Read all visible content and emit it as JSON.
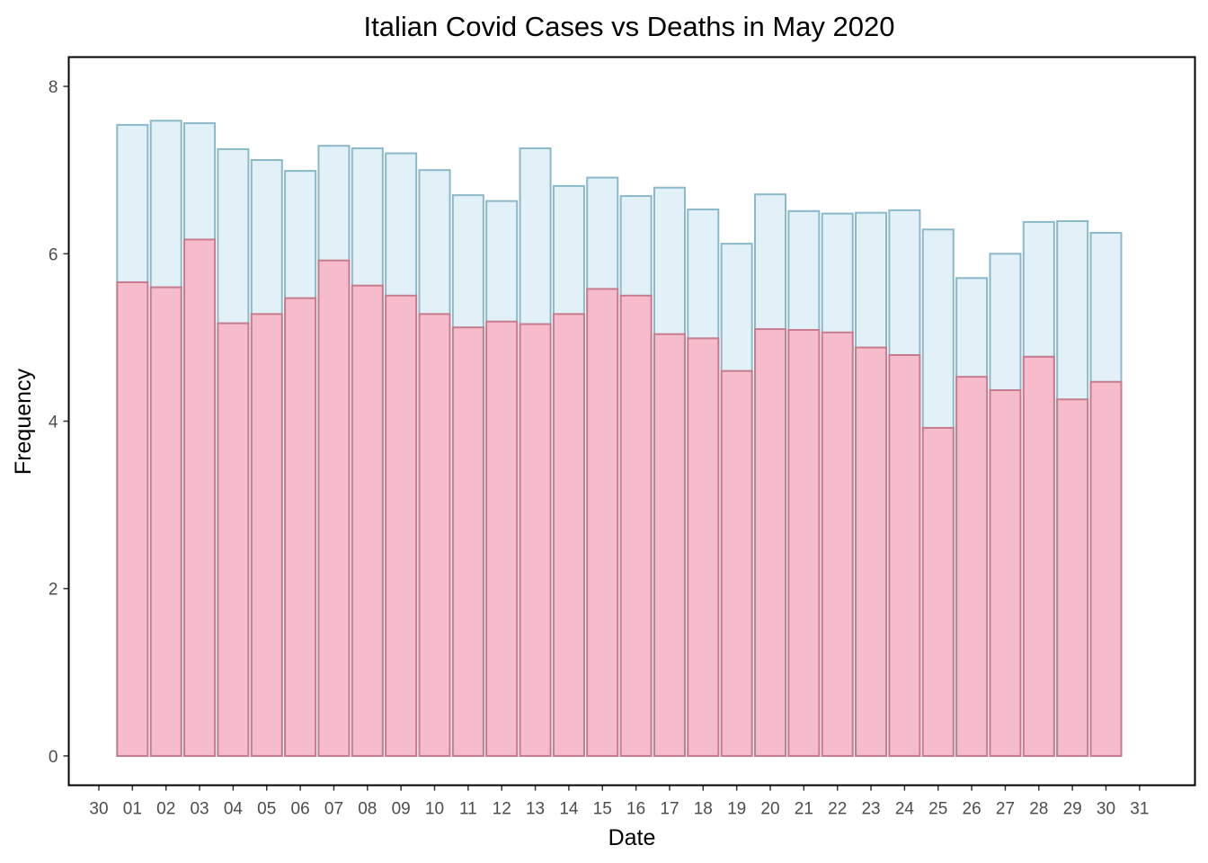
{
  "chart_data": {
    "type": "bar",
    "title": "Italian Covid Cases vs Deaths in May 2020",
    "xlabel": "Date",
    "ylabel": "Frequency",
    "ylim": [
      -0.35,
      8.35
    ],
    "yticks": [
      0,
      2,
      4,
      6,
      8
    ],
    "x_tick_labels": [
      "30",
      "01",
      "02",
      "03",
      "04",
      "05",
      "06",
      "07",
      "08",
      "09",
      "10",
      "11",
      "12",
      "13",
      "14",
      "15",
      "16",
      "17",
      "18",
      "19",
      "20",
      "21",
      "22",
      "23",
      "24",
      "25",
      "26",
      "27",
      "28",
      "29",
      "30",
      "31"
    ],
    "categories": [
      "01",
      "02",
      "03",
      "04",
      "05",
      "06",
      "07",
      "08",
      "09",
      "10",
      "11",
      "12",
      "13",
      "14",
      "15",
      "16",
      "17",
      "18",
      "19",
      "20",
      "21",
      "22",
      "23",
      "24",
      "25",
      "26",
      "27",
      "28",
      "29",
      "30"
    ],
    "grid": false,
    "legend": "none",
    "overlay": true,
    "series": [
      {
        "color_fill": "#e1f1f7",
        "color_stroke": "#8ab9c9",
        "values": [
          7.54,
          7.59,
          7.56,
          7.25,
          7.12,
          6.99,
          7.29,
          7.26,
          7.2,
          7.0,
          6.7,
          6.63,
          7.26,
          6.81,
          6.91,
          6.69,
          6.79,
          6.53,
          6.12,
          6.71,
          6.51,
          6.48,
          6.49,
          6.52,
          6.29,
          5.71,
          6.0,
          6.38,
          6.39,
          6.25
        ]
      },
      {
        "color_fill": "#f7bccb",
        "color_stroke": "#c67b8e",
        "values": [
          5.66,
          5.6,
          6.17,
          5.17,
          5.28,
          5.47,
          5.92,
          5.62,
          5.5,
          5.28,
          5.12,
          5.19,
          5.16,
          5.28,
          5.58,
          5.5,
          5.04,
          4.99,
          4.6,
          5.1,
          5.09,
          5.06,
          4.88,
          4.79,
          3.92,
          4.53,
          4.37,
          4.77,
          4.26,
          4.47
        ]
      }
    ]
  }
}
